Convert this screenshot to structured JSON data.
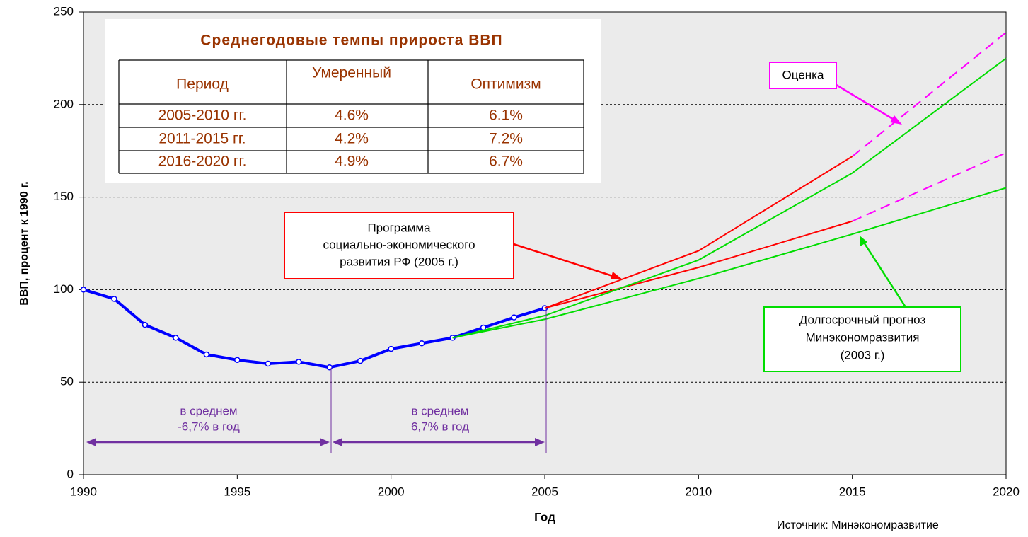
{
  "chart_data": {
    "type": "line",
    "y_label": "ВВП, процент к 1990 г.",
    "x_label": "Год",
    "xlim": [
      1990,
      2020
    ],
    "xticks": [
      1990,
      1995,
      2000,
      2005,
      2010,
      2015,
      2020
    ],
    "ylim": [
      0,
      250
    ],
    "yticks": [
      0,
      50,
      100,
      150,
      200,
      250
    ],
    "grid": true,
    "series": [
      {
        "color": "#0000ff",
        "style": "solid",
        "markers": true,
        "x": [
          1990,
          1991,
          1992,
          1993,
          1994,
          1995,
          1996,
          1997,
          1998,
          1999,
          2000,
          2001,
          2002,
          2003,
          2004,
          2005
        ],
        "values": [
          100,
          95,
          81,
          74,
          65,
          62,
          60,
          61,
          58,
          61.5,
          68,
          71,
          74,
          79.5,
          85,
          90
        ]
      },
      {
        "color": "#ff0000",
        "style": "solid",
        "x": [
          2005,
          2010,
          2015
        ],
        "values": [
          90,
          121,
          172
        ]
      },
      {
        "color": "#ff0000",
        "style": "solid",
        "x": [
          2005,
          2010,
          2015
        ],
        "values": [
          90,
          112,
          137
        ]
      },
      {
        "color": "#ff00ff",
        "style": "dashed",
        "x": [
          2015,
          2020
        ],
        "values": [
          172,
          239
        ]
      },
      {
        "color": "#ff00ff",
        "style": "dashed",
        "x": [
          2015,
          2020
        ],
        "values": [
          137,
          174
        ]
      },
      {
        "color": "#00dd00",
        "style": "solid",
        "x": [
          2002,
          2005,
          2010,
          2015,
          2020
        ],
        "values": [
          74,
          86,
          116,
          163,
          225
        ]
      },
      {
        "color": "#00dd00",
        "style": "solid",
        "x": [
          2002,
          2005,
          2010,
          2015,
          2020
        ],
        "values": [
          74,
          84,
          106,
          130,
          155
        ]
      }
    ],
    "table": {
      "title": "Среднегодовые темпы прироста ВВП",
      "header": [
        "Период",
        "Умеренный",
        "Оптимизм"
      ],
      "rows": [
        [
          "2005-2010 гг.",
          "4.6%",
          "6.1%"
        ],
        [
          "2011-2015 гг.",
          "4.2%",
          "7.2%"
        ],
        [
          "2016-2020 гг.",
          "4.9%",
          "6.7%"
        ]
      ]
    },
    "annotations": {
      "program": [
        "Программа",
        "социально-экономического",
        "развития РФ (2005 г.)"
      ],
      "estimate": [
        "Оценка"
      ],
      "forecast": [
        "Долгосрочный прогноз",
        "Минэкономразвития",
        "(2003 г.)"
      ],
      "avg1": [
        "в среднем",
        "-6,7% в год"
      ],
      "avg2": [
        "в среднем",
        "6,7% в год"
      ]
    },
    "source": "Источник: Минэкономразвитие"
  }
}
